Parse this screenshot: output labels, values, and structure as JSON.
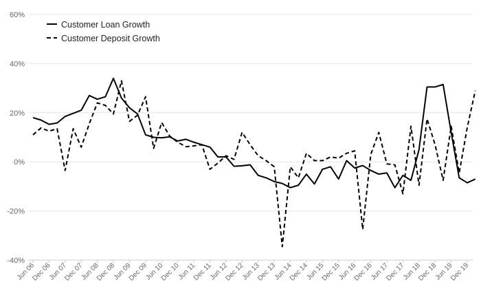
{
  "chart_data": {
    "type": "line",
    "ylim": [
      -40,
      60
    ],
    "yticks": [
      60,
      40,
      20,
      0,
      -20,
      -40
    ],
    "ytick_labels": [
      "60%",
      "40%",
      "20%",
      "0%",
      "-20%",
      "-40%"
    ],
    "x_tick_labels": [
      "Jun 06",
      "Dec 06",
      "Jun 07",
      "Dec 07",
      "Jun 08",
      "Dec 08",
      "Jun 09",
      "Dec 09",
      "Jun 10",
      "Dec 10",
      "Jun 11",
      "Dec 11",
      "Jun 12",
      "Dec 12",
      "Jun 13",
      "Dec 13",
      "Jun 14",
      "Dec 14",
      "Jun 15",
      "Dec 15",
      "Jun 16",
      "Dec 16",
      "Jun 17",
      "Dec 17",
      "Jun 18",
      "Dec 18",
      "Jun 19",
      "Dec 19"
    ],
    "grid": true,
    "legend_position": "top-left",
    "series": [
      {
        "name": "Customer Loan Growth",
        "style": "solid",
        "color": "#000000",
        "points": [
          [
            0,
            18
          ],
          [
            0.5,
            17
          ],
          [
            1,
            15.3
          ],
          [
            1.5,
            15.8
          ],
          [
            2,
            18.5
          ],
          [
            3,
            21
          ],
          [
            3.5,
            27
          ],
          [
            4,
            25.5
          ],
          [
            4.5,
            26.5
          ],
          [
            5,
            34
          ],
          [
            5.5,
            26
          ],
          [
            6,
            22
          ],
          [
            6.5,
            19.5
          ],
          [
            7,
            11
          ],
          [
            7.5,
            10
          ],
          [
            8,
            9.8
          ],
          [
            8.5,
            10.2
          ],
          [
            9,
            8.5
          ],
          [
            9.5,
            9.2
          ],
          [
            10,
            8
          ],
          [
            10.5,
            7
          ],
          [
            11,
            6
          ],
          [
            11.5,
            2
          ],
          [
            12,
            2
          ],
          [
            12.5,
            -1.8
          ],
          [
            13,
            -1.6
          ],
          [
            13.5,
            -1.2
          ],
          [
            14,
            -5.5
          ],
          [
            14.5,
            -6.5
          ],
          [
            15,
            -8
          ],
          [
            15.5,
            -8.8
          ],
          [
            16,
            -10.5
          ],
          [
            16.5,
            -9.5
          ],
          [
            17,
            -5
          ],
          [
            17.5,
            -9
          ],
          [
            18,
            -3
          ],
          [
            18.5,
            -2
          ],
          [
            19,
            -7
          ],
          [
            19.5,
            0.5
          ],
          [
            20,
            -2.5
          ],
          [
            20.5,
            -1.5
          ],
          [
            21,
            -3.5
          ],
          [
            21.5,
            -5
          ],
          [
            22,
            -4.5
          ],
          [
            22.5,
            -10.5
          ],
          [
            23,
            -5.5
          ],
          [
            23.5,
            -7.5
          ],
          [
            24,
            5
          ],
          [
            24.5,
            30.5
          ],
          [
            25,
            30.5
          ],
          [
            25.5,
            31.5
          ],
          [
            26,
            12
          ],
          [
            26.5,
            -6.5
          ],
          [
            27,
            -8.5
          ],
          [
            27.5,
            -7
          ]
        ]
      },
      {
        "name": "Customer Deposit Growth",
        "style": "dashed",
        "color": "#000000",
        "points": [
          [
            0,
            11
          ],
          [
            0.5,
            13.8
          ],
          [
            1,
            12.5
          ],
          [
            1.5,
            13.5
          ],
          [
            2,
            -3.5
          ],
          [
            2.5,
            13.5
          ],
          [
            3,
            6
          ],
          [
            3.5,
            15.5
          ],
          [
            4,
            24
          ],
          [
            4.5,
            23
          ],
          [
            5,
            19.5
          ],
          [
            5.5,
            33
          ],
          [
            6,
            16.5
          ],
          [
            6.5,
            19
          ],
          [
            7,
            26.5
          ],
          [
            7.5,
            5.5
          ],
          [
            8,
            16
          ],
          [
            8.5,
            10.5
          ],
          [
            9,
            8
          ],
          [
            9.5,
            6.2
          ],
          [
            10,
            6.5
          ],
          [
            10.5,
            7
          ],
          [
            11,
            -3
          ],
          [
            11.5,
            -0.5
          ],
          [
            12,
            2.5
          ],
          [
            12.5,
            1
          ],
          [
            13,
            12
          ],
          [
            13.5,
            7
          ],
          [
            14,
            2.5
          ],
          [
            14.5,
            0.5
          ],
          [
            15,
            -2
          ],
          [
            15.5,
            -34.5
          ],
          [
            16,
            -2
          ],
          [
            16.5,
            -6.5
          ],
          [
            17,
            3.5
          ],
          [
            17.5,
            0.5
          ],
          [
            18,
            0.5
          ],
          [
            18.5,
            2
          ],
          [
            19,
            1.5
          ],
          [
            19.5,
            3.5
          ],
          [
            20,
            4.5
          ],
          [
            20.5,
            -27.5
          ],
          [
            21,
            3
          ],
          [
            21.5,
            12
          ],
          [
            22,
            -0.8
          ],
          [
            22.5,
            -1.2
          ],
          [
            23,
            -13
          ],
          [
            23.5,
            14.5
          ],
          [
            24,
            -9.5
          ],
          [
            24.5,
            17.5
          ],
          [
            25,
            7
          ],
          [
            25.5,
            -7.5
          ],
          [
            26,
            14.5
          ],
          [
            26.5,
            -4.5
          ],
          [
            27,
            14
          ],
          [
            27.5,
            29
          ]
        ]
      }
    ]
  }
}
